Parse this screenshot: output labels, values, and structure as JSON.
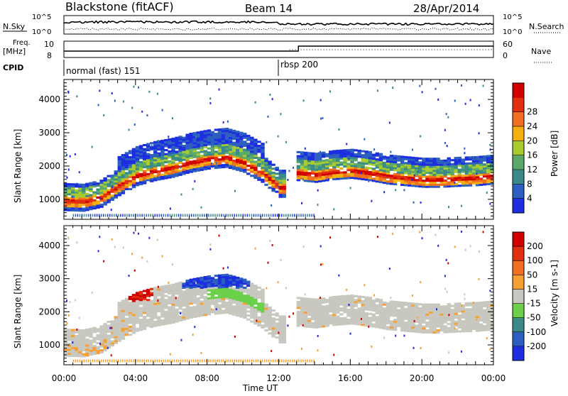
{
  "header": {
    "station": "Blackstone (fitACF)",
    "beam": "Beam 14",
    "date": "28/Apr/2014"
  },
  "top_strip": {
    "left_label": "N.Sky",
    "right_label": "N.Search",
    "left_ticks": [
      "10^5",
      "10^0"
    ],
    "right_ticks": [
      "10^5",
      "10^0"
    ]
  },
  "freq_strip": {
    "left_label_1": "Freq.",
    "left_label_2": "[MHz]",
    "right_label": "Nave",
    "left_ticks": [
      "10",
      "8"
    ],
    "right_ticks": [
      "60",
      "0"
    ]
  },
  "cpid": {
    "label": "CPID",
    "segments": [
      {
        "name": "normal (fast) 151",
        "start_hour": 0
      },
      {
        "name": "rbsp 200",
        "start_hour": 12
      }
    ]
  },
  "chart_data": [
    {
      "type": "heatmap",
      "title": "Power",
      "xlabel": "Time UT",
      "ylabel": "Slant Range [km]",
      "x_ticks": [
        "00:00",
        "04:00",
        "08:00",
        "12:00",
        "16:00",
        "20:00",
        "00:00"
      ],
      "x_range_hours": [
        0,
        24
      ],
      "y_ticks": [
        1000,
        2000,
        3000,
        4000
      ],
      "y_range_km": [
        400,
        4600
      ],
      "colorbar_label": "Power [dB]",
      "colorbar_ticks": [
        4,
        8,
        12,
        16,
        20,
        24,
        28
      ],
      "colorbar_colors": [
        "#1c2ee0",
        "#2d5fc0",
        "#3a8a8a",
        "#5aa86a",
        "#a8cc30",
        "#f5b010",
        "#f07020",
        "#e03010",
        "#d00000"
      ],
      "bands": [
        {
          "t": [
            0,
            1,
            2,
            3,
            4,
            5,
            6,
            7,
            8,
            9,
            10,
            11,
            12
          ],
          "r": [
            900,
            880,
            1000,
            1350,
            1650,
            1800,
            1900,
            2050,
            2150,
            2200,
            2050,
            1750,
            1300
          ]
        },
        {
          "t": [
            13,
            14,
            15,
            16,
            17,
            18,
            19,
            20,
            21,
            22,
            23,
            24
          ],
          "r": [
            1750,
            1700,
            1780,
            1820,
            1750,
            1650,
            1600,
            1550,
            1550,
            1580,
            1600,
            1650
          ]
        }
      ]
    },
    {
      "type": "heatmap",
      "title": "Velocity",
      "xlabel": "Time UT",
      "ylabel": "Slant Range [km]",
      "x_ticks": [
        "00:00",
        "04:00",
        "08:00",
        "12:00",
        "16:00",
        "20:00",
        "00:00"
      ],
      "x_range_hours": [
        0,
        24
      ],
      "y_ticks": [
        1000,
        2000,
        3000,
        4000
      ],
      "y_range_km": [
        400,
        4600
      ],
      "colorbar_label": "Velocity [m s-1]",
      "colorbar_ticks": [
        200,
        100,
        50,
        15,
        -15,
        -50,
        -100,
        -200
      ],
      "colorbar_colors": [
        "#1c2ee0",
        "#2d5fc0",
        "#3a8a8a",
        "#6bd04a",
        "#c8c8c0",
        "#f5a030",
        "#f07020",
        "#e03010",
        "#d00000"
      ]
    }
  ]
}
